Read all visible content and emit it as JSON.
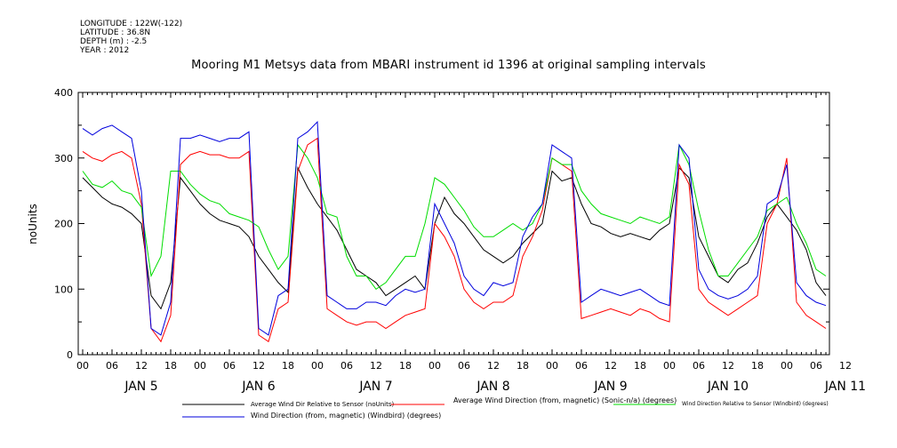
{
  "meta": {
    "longitude": "LONGITUDE : 122W(-122)",
    "latitude": "LATITUDE : 36.8N",
    "depth": "DEPTH (m) : -2.5",
    "year": "YEAR : 2012"
  },
  "chart_data": {
    "type": "line",
    "title": "Mooring M1 Metsys data from MBARI instrument id 1396 at original sampling intervals",
    "ylabel": "noUnits",
    "xlabel": "",
    "ylim": [
      0,
      400
    ],
    "yticks": [
      0,
      100,
      200,
      300,
      400
    ],
    "xlim_hours": [
      0,
      152
    ],
    "hour_ticks": [
      "00",
      "06",
      "12",
      "18",
      "00",
      "06",
      "12",
      "18",
      "00",
      "06",
      "12",
      "18",
      "00",
      "06",
      "12",
      "18",
      "00",
      "06",
      "12",
      "18",
      "00",
      "06",
      "12",
      "18",
      "00",
      "06",
      "12"
    ],
    "day_labels": [
      "JAN  5",
      "JAN  6",
      "JAN  7",
      "JAN  8",
      "JAN  9",
      "JAN 10",
      "JAN 11"
    ],
    "legend_placement": "bottom",
    "grid": false,
    "series": [
      {
        "name": "Average Wind Dir Relative to Sensor (noUnits)",
        "color": "#000000",
        "points": [
          [
            0,
            270
          ],
          [
            2,
            255
          ],
          [
            4,
            240
          ],
          [
            6,
            230
          ],
          [
            8,
            225
          ],
          [
            10,
            215
          ],
          [
            12,
            200
          ],
          [
            14,
            90
          ],
          [
            16,
            70
          ],
          [
            18,
            110
          ],
          [
            20,
            270
          ],
          [
            22,
            250
          ],
          [
            24,
            230
          ],
          [
            26,
            215
          ],
          [
            28,
            205
          ],
          [
            30,
            200
          ],
          [
            32,
            195
          ],
          [
            34,
            180
          ],
          [
            36,
            150
          ],
          [
            38,
            130
          ],
          [
            40,
            110
          ],
          [
            42,
            95
          ],
          [
            44,
            285
          ],
          [
            46,
            255
          ],
          [
            48,
            230
          ],
          [
            50,
            210
          ],
          [
            52,
            190
          ],
          [
            54,
            160
          ],
          [
            56,
            130
          ],
          [
            58,
            120
          ],
          [
            60,
            110
          ],
          [
            62,
            90
          ],
          [
            64,
            100
          ],
          [
            66,
            110
          ],
          [
            68,
            120
          ],
          [
            70,
            100
          ],
          [
            72,
            200
          ],
          [
            74,
            240
          ],
          [
            76,
            215
          ],
          [
            78,
            200
          ],
          [
            80,
            180
          ],
          [
            82,
            160
          ],
          [
            84,
            150
          ],
          [
            86,
            140
          ],
          [
            88,
            150
          ],
          [
            90,
            170
          ],
          [
            92,
            185
          ],
          [
            94,
            200
          ],
          [
            96,
            280
          ],
          [
            98,
            265
          ],
          [
            100,
            270
          ],
          [
            102,
            230
          ],
          [
            104,
            200
          ],
          [
            106,
            195
          ],
          [
            108,
            185
          ],
          [
            110,
            180
          ],
          [
            112,
            185
          ],
          [
            114,
            180
          ],
          [
            116,
            175
          ],
          [
            118,
            190
          ],
          [
            120,
            200
          ],
          [
            122,
            285
          ],
          [
            124,
            270
          ],
          [
            126,
            180
          ],
          [
            128,
            150
          ],
          [
            130,
            120
          ],
          [
            132,
            110
          ],
          [
            134,
            130
          ],
          [
            136,
            140
          ],
          [
            138,
            170
          ],
          [
            140,
            210
          ],
          [
            142,
            230
          ],
          [
            144,
            210
          ],
          [
            146,
            190
          ],
          [
            148,
            160
          ],
          [
            150,
            110
          ],
          [
            152,
            90
          ]
        ]
      },
      {
        "name": "Average Wind Direction (from, magnetic) (Sonic-n/a) (degrees)",
        "color": "#ff0000",
        "points": [
          [
            0,
            310
          ],
          [
            2,
            300
          ],
          [
            4,
            295
          ],
          [
            6,
            305
          ],
          [
            8,
            310
          ],
          [
            10,
            300
          ],
          [
            12,
            230
          ],
          [
            14,
            40
          ],
          [
            16,
            20
          ],
          [
            18,
            60
          ],
          [
            20,
            290
          ],
          [
            22,
            305
          ],
          [
            24,
            310
          ],
          [
            26,
            305
          ],
          [
            28,
            305
          ],
          [
            30,
            300
          ],
          [
            32,
            300
          ],
          [
            34,
            310
          ],
          [
            36,
            30
          ],
          [
            38,
            20
          ],
          [
            40,
            70
          ],
          [
            42,
            80
          ],
          [
            44,
            280
          ],
          [
            46,
            320
          ],
          [
            48,
            330
          ],
          [
            50,
            70
          ],
          [
            52,
            60
          ],
          [
            54,
            50
          ],
          [
            56,
            45
          ],
          [
            58,
            50
          ],
          [
            60,
            50
          ],
          [
            62,
            40
          ],
          [
            64,
            50
          ],
          [
            66,
            60
          ],
          [
            68,
            65
          ],
          [
            70,
            70
          ],
          [
            72,
            200
          ],
          [
            74,
            180
          ],
          [
            76,
            150
          ],
          [
            78,
            100
          ],
          [
            80,
            80
          ],
          [
            82,
            70
          ],
          [
            84,
            80
          ],
          [
            86,
            80
          ],
          [
            88,
            90
          ],
          [
            90,
            150
          ],
          [
            92,
            180
          ],
          [
            94,
            220
          ],
          [
            96,
            300
          ],
          [
            98,
            290
          ],
          [
            100,
            280
          ],
          [
            102,
            55
          ],
          [
            104,
            60
          ],
          [
            106,
            65
          ],
          [
            108,
            70
          ],
          [
            110,
            65
          ],
          [
            112,
            60
          ],
          [
            114,
            70
          ],
          [
            116,
            65
          ],
          [
            118,
            55
          ],
          [
            120,
            50
          ],
          [
            122,
            290
          ],
          [
            124,
            260
          ],
          [
            126,
            100
          ],
          [
            128,
            80
          ],
          [
            130,
            70
          ],
          [
            132,
            60
          ],
          [
            134,
            70
          ],
          [
            136,
            80
          ],
          [
            138,
            90
          ],
          [
            140,
            200
          ],
          [
            142,
            230
          ],
          [
            144,
            300
          ],
          [
            146,
            80
          ],
          [
            148,
            60
          ],
          [
            150,
            50
          ],
          [
            152,
            40
          ]
        ]
      },
      {
        "name": "Wind Direction Relative to Sensor (Windbird) (degrees)",
        "color": "#00dd00",
        "points": [
          [
            0,
            280
          ],
          [
            2,
            260
          ],
          [
            4,
            255
          ],
          [
            6,
            265
          ],
          [
            8,
            250
          ],
          [
            10,
            245
          ],
          [
            12,
            225
          ],
          [
            14,
            120
          ],
          [
            16,
            150
          ],
          [
            18,
            280
          ],
          [
            20,
            280
          ],
          [
            22,
            260
          ],
          [
            24,
            245
          ],
          [
            26,
            235
          ],
          [
            28,
            230
          ],
          [
            30,
            215
          ],
          [
            32,
            210
          ],
          [
            34,
            205
          ],
          [
            36,
            195
          ],
          [
            38,
            160
          ],
          [
            40,
            130
          ],
          [
            42,
            150
          ],
          [
            44,
            320
          ],
          [
            46,
            300
          ],
          [
            48,
            270
          ],
          [
            50,
            215
          ],
          [
            52,
            210
          ],
          [
            54,
            150
          ],
          [
            56,
            120
          ],
          [
            58,
            120
          ],
          [
            60,
            100
          ],
          [
            62,
            110
          ],
          [
            64,
            130
          ],
          [
            66,
            150
          ],
          [
            68,
            150
          ],
          [
            70,
            200
          ],
          [
            72,
            270
          ],
          [
            74,
            260
          ],
          [
            76,
            240
          ],
          [
            78,
            220
          ],
          [
            80,
            195
          ],
          [
            82,
            180
          ],
          [
            84,
            180
          ],
          [
            86,
            190
          ],
          [
            88,
            200
          ],
          [
            90,
            190
          ],
          [
            92,
            200
          ],
          [
            94,
            230
          ],
          [
            96,
            300
          ],
          [
            98,
            290
          ],
          [
            100,
            290
          ],
          [
            102,
            250
          ],
          [
            104,
            230
          ],
          [
            106,
            215
          ],
          [
            108,
            210
          ],
          [
            110,
            205
          ],
          [
            112,
            200
          ],
          [
            114,
            210
          ],
          [
            116,
            205
          ],
          [
            118,
            200
          ],
          [
            120,
            210
          ],
          [
            122,
            320
          ],
          [
            124,
            290
          ],
          [
            126,
            220
          ],
          [
            128,
            160
          ],
          [
            130,
            120
          ],
          [
            132,
            120
          ],
          [
            134,
            140
          ],
          [
            136,
            160
          ],
          [
            138,
            180
          ],
          [
            140,
            220
          ],
          [
            142,
            230
          ],
          [
            144,
            240
          ],
          [
            146,
            200
          ],
          [
            148,
            170
          ],
          [
            150,
            130
          ],
          [
            152,
            120
          ]
        ]
      },
      {
        "name": "Wind Direction (from, magnetic) (Windbird) (degrees)",
        "color": "#0000dd",
        "points": [
          [
            0,
            345
          ],
          [
            2,
            335
          ],
          [
            4,
            345
          ],
          [
            6,
            350
          ],
          [
            8,
            340
          ],
          [
            10,
            330
          ],
          [
            12,
            250
          ],
          [
            14,
            40
          ],
          [
            16,
            30
          ],
          [
            18,
            80
          ],
          [
            20,
            330
          ],
          [
            22,
            330
          ],
          [
            24,
            335
          ],
          [
            26,
            330
          ],
          [
            28,
            325
          ],
          [
            30,
            330
          ],
          [
            32,
            330
          ],
          [
            34,
            340
          ],
          [
            36,
            40
          ],
          [
            38,
            30
          ],
          [
            40,
            90
          ],
          [
            42,
            100
          ],
          [
            44,
            330
          ],
          [
            46,
            340
          ],
          [
            48,
            355
          ],
          [
            50,
            90
          ],
          [
            52,
            80
          ],
          [
            54,
            70
          ],
          [
            56,
            70
          ],
          [
            58,
            80
          ],
          [
            60,
            80
          ],
          [
            62,
            75
          ],
          [
            64,
            90
          ],
          [
            66,
            100
          ],
          [
            68,
            95
          ],
          [
            70,
            100
          ],
          [
            72,
            230
          ],
          [
            74,
            200
          ],
          [
            76,
            170
          ],
          [
            78,
            120
          ],
          [
            80,
            100
          ],
          [
            82,
            90
          ],
          [
            84,
            110
          ],
          [
            86,
            105
          ],
          [
            88,
            110
          ],
          [
            90,
            180
          ],
          [
            92,
            210
          ],
          [
            94,
            230
          ],
          [
            96,
            320
          ],
          [
            98,
            310
          ],
          [
            100,
            300
          ],
          [
            102,
            80
          ],
          [
            104,
            90
          ],
          [
            106,
            100
          ],
          [
            108,
            95
          ],
          [
            110,
            90
          ],
          [
            112,
            95
          ],
          [
            114,
            100
          ],
          [
            116,
            90
          ],
          [
            118,
            80
          ],
          [
            120,
            75
          ],
          [
            122,
            320
          ],
          [
            124,
            300
          ],
          [
            126,
            130
          ],
          [
            128,
            100
          ],
          [
            130,
            90
          ],
          [
            132,
            85
          ],
          [
            134,
            90
          ],
          [
            136,
            100
          ],
          [
            138,
            120
          ],
          [
            140,
            230
          ],
          [
            142,
            240
          ],
          [
            144,
            290
          ],
          [
            146,
            110
          ],
          [
            148,
            90
          ],
          [
            150,
            80
          ],
          [
            152,
            75
          ]
        ]
      }
    ]
  }
}
